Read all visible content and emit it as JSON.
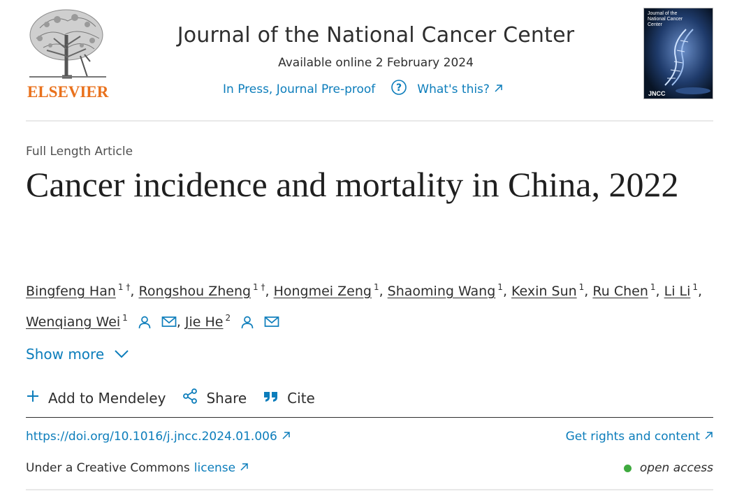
{
  "header": {
    "publisher": "ELSEVIER",
    "journal_title": "Journal of the National Cancer Center",
    "available_online": "Available online 2 February 2024",
    "status": "In Press, Journal Pre-proof",
    "whats_this": "What's this?",
    "cover": {
      "title": "Journal of the National Cancer Center",
      "abbr": "JNCC"
    }
  },
  "article": {
    "type": "Full Length Article",
    "title": "Cancer incidence and mortality in China, 2022"
  },
  "authors": [
    {
      "name": "Bingfeng Han",
      "sup": "1 †",
      "sep": ","
    },
    {
      "name": "Rongshou Zheng",
      "sup": "1 †",
      "sep": ","
    },
    {
      "name": "Hongmei Zeng",
      "sup": "1",
      "sep": ","
    },
    {
      "name": "Shaoming Wang",
      "sup": "1",
      "sep": ","
    },
    {
      "name": "Kexin Sun",
      "sup": "1",
      "sep": ","
    },
    {
      "name": "Ru Chen",
      "sup": "1",
      "sep": ","
    },
    {
      "name": "Li Li",
      "sup": "1",
      "sep": ","
    },
    {
      "name": "Wenqiang Wei",
      "sup": "1",
      "sep": ",",
      "icons": true
    },
    {
      "name": "Jie He",
      "sup": "2",
      "sep": "",
      "icons": true
    }
  ],
  "show_more": "Show more",
  "actions": {
    "mendeley": "Add to Mendeley",
    "share": "Share",
    "cite": "Cite"
  },
  "links": {
    "doi": "https://doi.org/10.1016/j.jncc.2024.01.006",
    "rights": "Get rights and content",
    "license_prefix": "Under a Creative Commons",
    "license_link": "license",
    "access": "open access"
  },
  "colors": {
    "link": "#0c7dbb",
    "brand": "#e9711c",
    "open_access": "#3faa3f"
  }
}
